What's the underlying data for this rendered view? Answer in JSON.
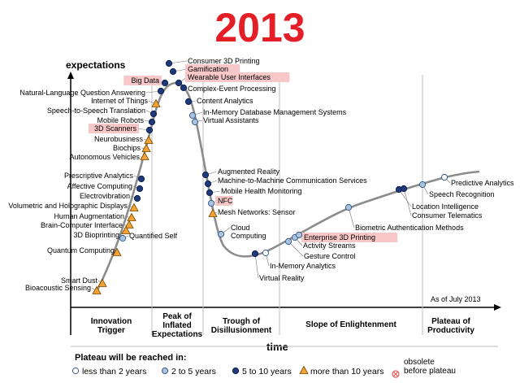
{
  "header": {
    "year": "2013"
  },
  "chart_data": {
    "type": "scatter",
    "ylabel": "expectations",
    "xlabel": "time",
    "as_of": "As of July 2013",
    "phases": [
      [
        "Innovation",
        "Trigger"
      ],
      [
        "Peak of",
        "Inflated",
        "Expectations"
      ],
      [
        "Trough of",
        "Disillusionment"
      ],
      [
        "Slope of Enlightenment"
      ],
      [
        "Plateau of",
        "Productivity"
      ]
    ],
    "legend": {
      "title": "Plateau will be reached in:",
      "entries": [
        {
          "key": "lt2",
          "label": "less than 2 years"
        },
        {
          "key": "2to5",
          "label": "2 to 5 years"
        },
        {
          "key": "5to10",
          "label": "5 to 10 years"
        },
        {
          "key": "gt10",
          "label": "more than 10 years"
        },
        {
          "key": "obsolete",
          "label": "obsolete before plateau",
          "lines": [
            "obsolete",
            "before plateau"
          ]
        }
      ]
    },
    "colors": {
      "year": "#e41e26",
      "curve": "#8c8c8c",
      "lt2": "#ffffff",
      "2to5": "#aac4e0",
      "5to10": "#1f3a7a",
      "gt10": "#f4a234",
      "obsolete": "#ee5555",
      "highlight": "#f8c8c8"
    },
    "points": [
      {
        "label": "Consumer 3D Printing",
        "cat": "5to10"
      },
      {
        "label": "Gamification",
        "cat": "5to10",
        "highlight": true
      },
      {
        "label": "Big Data",
        "cat": "5to10",
        "highlight": true
      },
      {
        "label": "Wearable User Interfaces",
        "cat": "5to10",
        "highlight": true
      },
      {
        "label": "Complex-Event Processing",
        "cat": "5to10"
      },
      {
        "label": "Natural-Language Question Answering",
        "cat": "5to10"
      },
      {
        "label": "Content Analytics",
        "cat": "5to10"
      },
      {
        "label": "Internet of Things",
        "cat": "gt10"
      },
      {
        "label": "In-Memory Database Management Systems",
        "cat": "2to5"
      },
      {
        "label": "Speech-to-Speech Translation",
        "cat": "5to10"
      },
      {
        "label": "Virtual Assistants",
        "cat": "2to5"
      },
      {
        "label": "Mobile Robots",
        "cat": "5to10"
      },
      {
        "label": "3D Scanners",
        "cat": "5to10",
        "highlight": true
      },
      {
        "label": "Neurobusiness",
        "cat": "gt10"
      },
      {
        "label": "Biochips",
        "cat": "gt10"
      },
      {
        "label": "Autonomous Vehicles",
        "cat": "gt10"
      },
      {
        "label": "Augmented Reality",
        "cat": "5to10"
      },
      {
        "label": "Prescriptive Analytics",
        "cat": "5to10"
      },
      {
        "label": "Machine-to-Machine Communication Services",
        "cat": "5to10"
      },
      {
        "label": "Affective Computing",
        "cat": "5to10"
      },
      {
        "label": "Mobile Health Monitoring",
        "cat": "5to10"
      },
      {
        "label": "Electrovibration",
        "cat": "5to10"
      },
      {
        "label": "NFC",
        "cat": "2to5",
        "highlight": true
      },
      {
        "label": "Volumetric and Holographic Displays",
        "cat": "gt10"
      },
      {
        "label": "Mesh Networks: Sensor",
        "cat": "gt10"
      },
      {
        "label": "Human Augmentation",
        "cat": "gt10"
      },
      {
        "label": "Brain-Computer Interface",
        "cat": "gt10"
      },
      {
        "label": "3D Bioprinting",
        "cat": "gt10"
      },
      {
        "label": "Quantified Self",
        "cat": "2to5"
      },
      {
        "label": "Quantum Computing",
        "cat": "gt10"
      },
      {
        "label": "Smart Dust",
        "cat": "gt10"
      },
      {
        "label": "Bioacoustic Sensing",
        "cat": "gt10"
      },
      {
        "label": "Cloud Computing",
        "cat": "2to5"
      },
      {
        "label": "Virtual Reality",
        "cat": "5to10"
      },
      {
        "label": "In-Memory Analytics",
        "cat": "lt2"
      },
      {
        "label": "Gesture Control",
        "cat": "2to5"
      },
      {
        "label": "Activity Streams",
        "cat": "2to5"
      },
      {
        "label": "Enterprise 3D Printing",
        "cat": "2to5",
        "highlight": true
      },
      {
        "label": "Biometric Authentication Methods",
        "cat": "2to5"
      },
      {
        "label": "Location Intelligence",
        "cat": "5to10"
      },
      {
        "label": "Consumer Telematics",
        "cat": "5to10"
      },
      {
        "label": "Speech Recognition",
        "cat": "2to5"
      },
      {
        "label": "Predictive Analytics",
        "cat": "lt2"
      }
    ]
  }
}
